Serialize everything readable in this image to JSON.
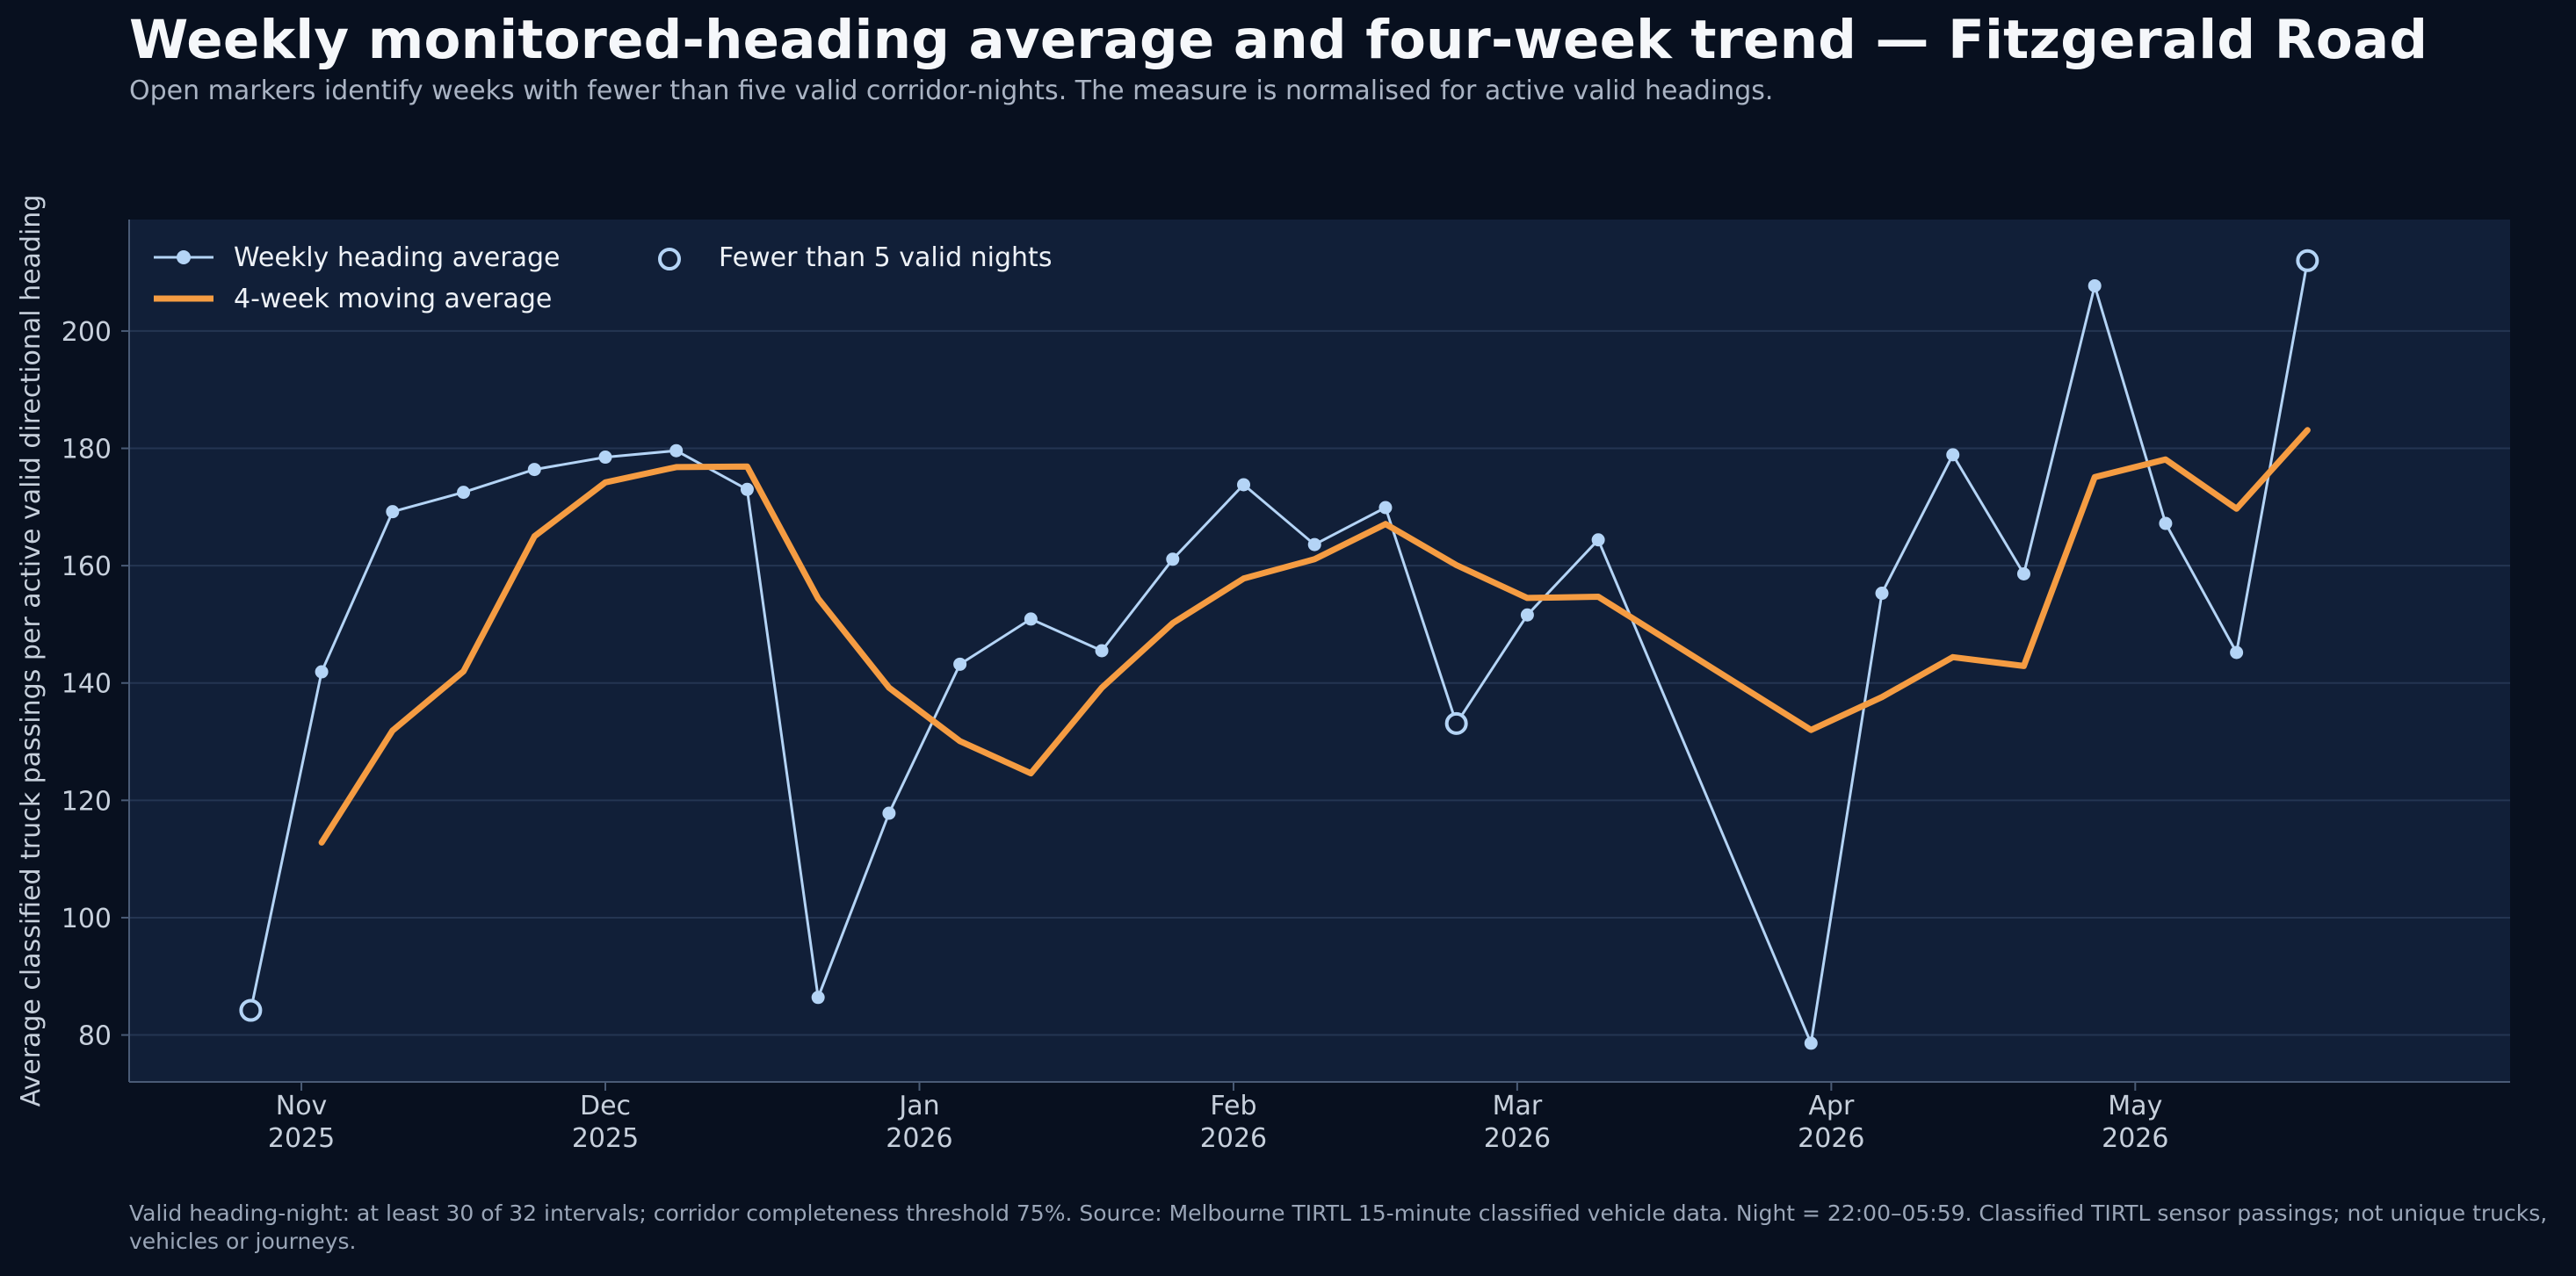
{
  "title": "Weekly monitored-heading average and four-week trend — Fitzgerald Road",
  "subtitle": "Open markers identify weeks with fewer than five valid corridor-nights. The measure is normalised for active valid headings.",
  "footnote": "Valid heading-night: at least 30 of 32 intervals; corridor completeness threshold 75%. Source: Melbourne TIRTL 15-minute classified vehicle data. Night = 22:00–05:59. Classified TIRTL sensor passings; not unique trucks, vehicles or journeys.",
  "colors": {
    "background": "#08101f",
    "plot_background": "#111f38",
    "weekly": "#b4d4f6",
    "moving_average": "#f59c42",
    "grid": "#243552",
    "text": "#c7d0dc"
  },
  "chart_data": {
    "type": "line",
    "ylabel": "Average classified truck passings per active valid directional heading",
    "xlabel": "",
    "ylim": [
      72,
      219
    ],
    "xlim": [
      "2025-10-15",
      "2026-06-07"
    ],
    "yticks": [
      80,
      100,
      120,
      140,
      160,
      180,
      200
    ],
    "xticks": [
      {
        "date": "2025-11-01",
        "label": [
          "Nov",
          "2025"
        ]
      },
      {
        "date": "2025-12-01",
        "label": [
          "Dec",
          "2025"
        ]
      },
      {
        "date": "2026-01-01",
        "label": [
          "Jan",
          "2026"
        ]
      },
      {
        "date": "2026-02-01",
        "label": [
          "Feb",
          "2026"
        ]
      },
      {
        "date": "2026-03-01",
        "label": [
          "Mar",
          "2026"
        ]
      },
      {
        "date": "2026-04-01",
        "label": [
          "Apr",
          "2026"
        ]
      },
      {
        "date": "2026-05-01",
        "label": [
          "May",
          "2026"
        ]
      }
    ],
    "grid": true,
    "legend_position": "top-left",
    "x": [
      "2025-10-27",
      "2025-11-03",
      "2025-11-10",
      "2025-11-17",
      "2025-11-24",
      "2025-12-01",
      "2025-12-08",
      "2025-12-15",
      "2025-12-22",
      "2025-12-29",
      "2026-01-05",
      "2026-01-12",
      "2026-01-19",
      "2026-01-26",
      "2026-02-02",
      "2026-02-09",
      "2026-02-16",
      "2026-02-23",
      "2026-03-02",
      "2026-03-09",
      "2026-03-16",
      "2026-03-23",
      "2026-03-30",
      "2026-04-06",
      "2026-04-13",
      "2026-04-20",
      "2026-04-27",
      "2026-05-04",
      "2026-05-11",
      "2026-05-18"
    ],
    "series": [
      {
        "name": "Weekly heading average",
        "values": [
          84.2,
          141.9,
          169.2,
          172.5,
          176.4,
          178.5,
          179.6,
          173.0,
          86.4,
          117.8,
          143.2,
          150.9,
          145.5,
          161.1,
          173.8,
          163.6,
          169.9,
          133.1,
          151.6,
          164.4,
          null,
          null,
          78.6,
          155.3,
          178.9,
          158.6,
          207.7,
          167.2,
          145.2,
          212.0
        ],
        "low_coverage": [
          true,
          false,
          false,
          false,
          false,
          false,
          false,
          false,
          false,
          false,
          false,
          false,
          false,
          false,
          false,
          false,
          false,
          true,
          false,
          false,
          false,
          false,
          false,
          false,
          false,
          false,
          false,
          false,
          false,
          true
        ]
      },
      {
        "name": "4-week moving average",
        "values": [
          null,
          112.8,
          131.9,
          142.0,
          165.0,
          174.2,
          176.8,
          176.9,
          154.4,
          139.2,
          130.1,
          124.6,
          139.2,
          150.2,
          157.8,
          161.1,
          167.1,
          160.1,
          154.5,
          154.7,
          null,
          null,
          132.0,
          137.6,
          144.4,
          142.9,
          175.1,
          178.1,
          169.7,
          183.1
        ]
      }
    ],
    "legend_low_coverage": "Fewer than 5 valid nights"
  }
}
